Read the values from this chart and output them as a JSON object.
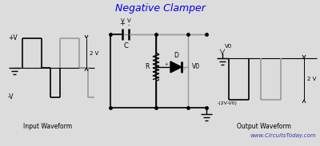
{
  "title": "Negative Clamper",
  "title_color": "#0000ee",
  "bg_color": "#dcdcdc",
  "line_color": "#000000",
  "gray_color": "#999999",
  "watermark": "www.CircuitsToday.com",
  "watermark_color": "#3333bb",
  "input_label": "Input Waveform",
  "output_label": "Output Waveform",
  "label_2v_in": "2 V",
  "label_2v_out": "2 V",
  "label_plus_v": "+V",
  "label_minus_v": "-V",
  "label_v0_out": "V0",
  "label_c": "C",
  "label_r": "R",
  "label_d": "D",
  "label_vo": "V0",
  "label_out_bottom": "-(2V-V0)",
  "cap_plus": "+",
  "cap_minus": "-",
  "cap_v_left": "V",
  "cap_v_right": "V"
}
